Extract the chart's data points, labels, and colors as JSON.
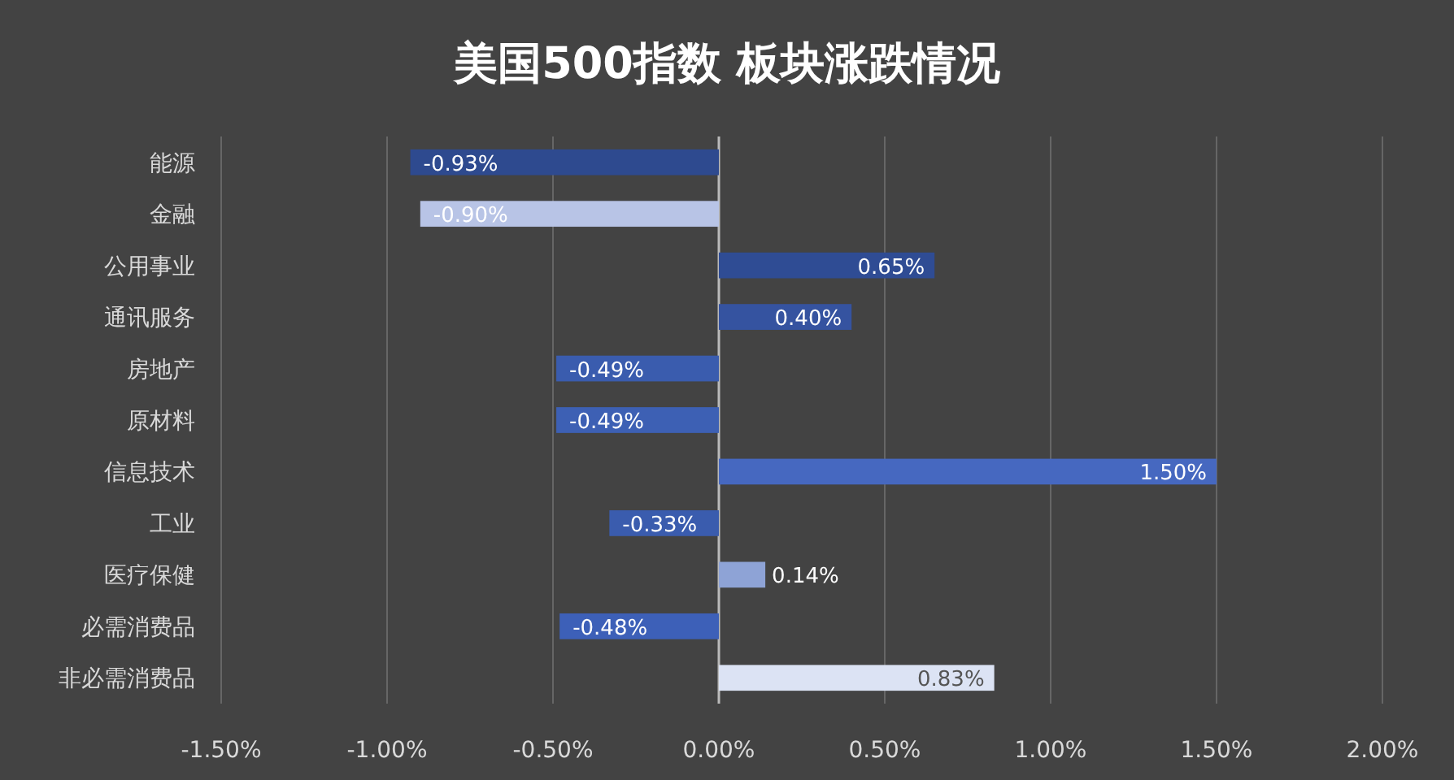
{
  "chart_data": {
    "type": "bar",
    "orientation": "horizontal",
    "title": "美国500指数 板块涨跌情况",
    "categories": [
      "能源",
      "金融",
      "公用事业",
      "通讯服务",
      "房地产",
      "原材料",
      "信息技术",
      "工业",
      "医疗保健",
      "必需消费品",
      "非必需消费品"
    ],
    "values": [
      -0.93,
      -0.9,
      0.65,
      0.4,
      -0.49,
      -0.49,
      1.5,
      -0.33,
      0.14,
      -0.48,
      0.83
    ],
    "value_labels": [
      "-0.93%",
      "-0.90%",
      "0.65%",
      "0.40%",
      "-0.49%",
      "-0.49%",
      "1.50%",
      "-0.33%",
      "0.14%",
      "-0.48%",
      "0.83%"
    ],
    "colors": [
      "#2e4a8f",
      "#b8c4e6",
      "#2f4c94",
      "#3553a0",
      "#3a5cae",
      "#3d60b4",
      "#4668c0",
      "#3a5cae",
      "#8ea3d6",
      "#3d60b8",
      "#dce3f4"
    ],
    "xlim": [
      -1.5,
      2.0
    ],
    "xticks": [
      {
        "value": -1.5,
        "label": "-1.50%"
      },
      {
        "value": -1.0,
        "label": "-1.00%"
      },
      {
        "value": -0.5,
        "label": "-0.50%"
      },
      {
        "value": 0,
        "label": "0.00%"
      },
      {
        "value": 0.5,
        "label": "0.50%"
      },
      {
        "value": 1.0,
        "label": "1.00%"
      },
      {
        "value": 1.5,
        "label": "1.50%"
      },
      {
        "value": 2.0,
        "label": "2.00%"
      }
    ],
    "grid": "x"
  }
}
